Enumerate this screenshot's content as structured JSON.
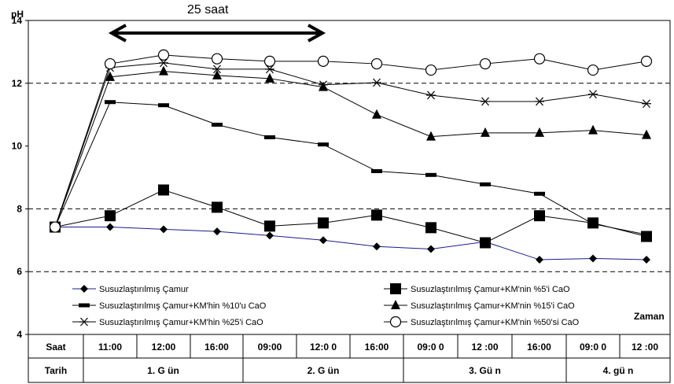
{
  "chart_data": {
    "type": "line",
    "title": "",
    "annotation": "25 saat",
    "ylabel": "pH",
    "xlabel": "Zaman",
    "ylim": [
      4,
      14
    ],
    "yticks": [
      4,
      6,
      8,
      10,
      12,
      14
    ],
    "grid": "dashed horizontal at 6, 8, 12",
    "legend_position": "bottom inside plot, two columns",
    "x": [
      "",
      "11:00",
      "12:00",
      "16:00",
      "09:00",
      "12:00",
      "16:00",
      "09:00",
      "12:00",
      "16:00",
      "09:00",
      "12:00"
    ],
    "series": [
      {
        "name": "Susuzlaştırılmış Çamur",
        "marker": "diamond",
        "color": "#000000",
        "values": [
          7.42,
          7.42,
          7.35,
          7.28,
          7.15,
          7.0,
          6.8,
          6.72,
          6.95,
          6.38,
          6.42,
          6.38
        ]
      },
      {
        "name": "Susuzlaştırılmış Çamur+KM'nin %5'i CaO",
        "marker": "square",
        "color": "#000000",
        "values": [
          7.42,
          7.78,
          8.6,
          8.05,
          7.45,
          7.55,
          7.8,
          7.4,
          6.92,
          7.78,
          7.55,
          7.12
        ]
      },
      {
        "name": "Susuzlaştırılmış Çamur+KM'hin %10'u CaO",
        "marker": "dash",
        "color": "#000000",
        "values": [
          7.42,
          11.4,
          11.3,
          10.68,
          10.28,
          10.05,
          9.2,
          9.08,
          8.78,
          8.48,
          7.52,
          7.18
        ]
      },
      {
        "name": "Susuzlaştırılmış Çamur+KM'nin %15'i CaO",
        "marker": "triangle",
        "color": "#000000",
        "values": [
          7.42,
          12.2,
          12.38,
          12.25,
          12.15,
          11.88,
          11.0,
          10.3,
          10.42,
          10.42,
          10.5,
          10.35
        ]
      },
      {
        "name": "Susuzlaştırılmış Çamur+KM'hin %25'i CaO",
        "marker": "star",
        "color": "#000000",
        "values": [
          7.42,
          12.5,
          12.65,
          12.45,
          12.45,
          11.95,
          12.02,
          11.62,
          11.42,
          11.42,
          11.65,
          11.35
        ]
      },
      {
        "name": "Susuzlaştırılmış Çamur+KM'nin %50'si CaO",
        "marker": "circle",
        "color": "#000000",
        "values": [
          7.42,
          12.62,
          12.9,
          12.78,
          12.7,
          12.7,
          12.62,
          12.42,
          12.62,
          12.78,
          12.42,
          12.7
        ]
      }
    ],
    "table": {
      "row1_label": "Saat",
      "row2_label": "Tarih",
      "times": [
        "11:00",
        "12:00",
        "16:00",
        "09:00",
        "12:0 0",
        "16:00",
        "09:0 0",
        "12 :00",
        "16:00",
        "09:0 0",
        "12 :00"
      ],
      "days": [
        "1. G ün",
        "2. G ün",
        "3. Gü n",
        "4. gü n"
      ]
    }
  }
}
